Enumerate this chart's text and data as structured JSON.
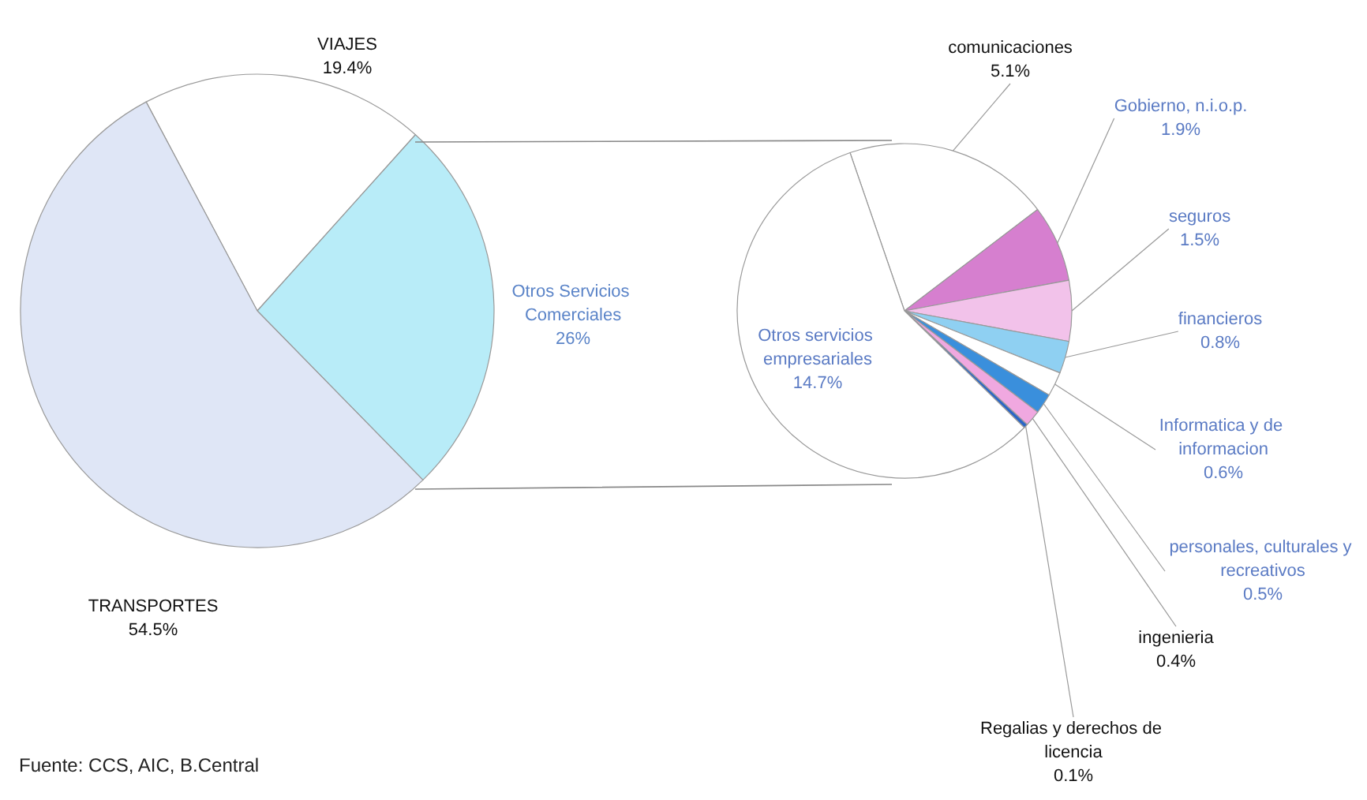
{
  "chart_data": [
    {
      "type": "pie",
      "categories": [
        "VIAJES",
        "Otros Servicios Comerciales",
        "TRANSPORTES"
      ],
      "values": [
        19.4,
        26,
        54.5
      ],
      "colors": [
        "#ffffff",
        "#b8ecf8",
        "#dfe6f6"
      ],
      "value_labels": [
        "19.4%",
        "26%",
        "54.5%"
      ],
      "legend": false,
      "annotations": [
        "Fuente: CCS, AIC, B.Central"
      ]
    },
    {
      "type": "pie",
      "categories": [
        "comunicaciones",
        "Gobierno, n.i.o.p.",
        "seguros",
        "financieros",
        "Informatica y de informacion",
        "personales, culturales y recreativos",
        "ingenieria",
        "Regalias y derechos de licencia",
        "Otros servicios empresariales"
      ],
      "values": [
        5.1,
        1.9,
        1.5,
        0.8,
        0.6,
        0.5,
        0.4,
        0.1,
        14.7
      ],
      "colors": [
        "#ffffff",
        "#d67fcf",
        "#f2c2ea",
        "#8fd0f2",
        "#ffffff",
        "#3a8fdc",
        "#f0a8e0",
        "#2a66c8",
        "#ffffff"
      ],
      "value_labels": [
        "5.1%",
        "1.9%",
        "1.5%",
        "0.8%",
        "0.6%",
        "0.5%",
        "0.4%",
        "0.1%",
        "14.7%"
      ],
      "legend": false
    }
  ]
}
